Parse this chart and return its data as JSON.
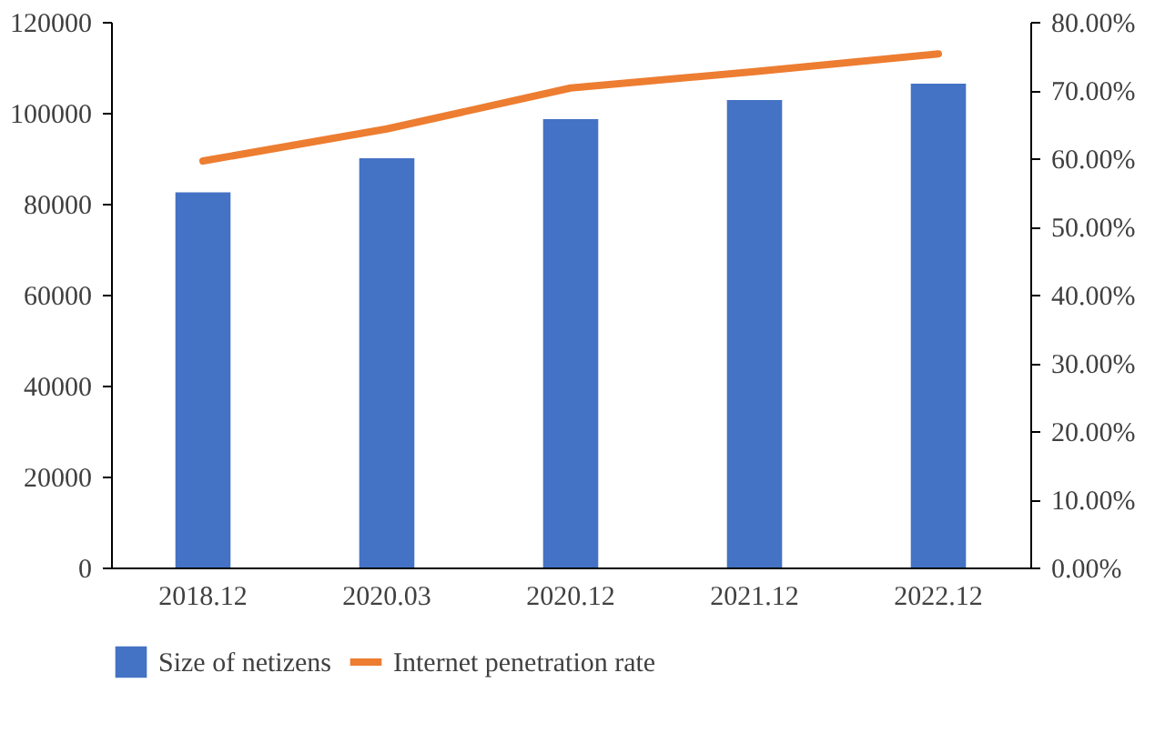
{
  "chart_data": {
    "type": "bar",
    "categories": [
      "2018.12",
      "2020.03",
      "2020.12",
      "2021.12",
      "2022.12"
    ],
    "series": [
      {
        "name": "Size of netizens",
        "color": "#4472c4",
        "values": [
          82500,
          90000,
          98600,
          102800,
          106400
        ]
      },
      {
        "name": "Internet penetration rate",
        "type": "line",
        "axis": "y2",
        "color": "#ed7d31",
        "values": [
          59.6,
          64.3,
          70.3,
          72.7,
          75.3
        ]
      }
    ],
    "ylim": [
      0,
      120000
    ],
    "yticks": [
      0,
      20000,
      40000,
      60000,
      80000,
      100000,
      120000
    ],
    "y2lim": [
      0,
      80
    ],
    "y2ticks": [
      {
        "value": 0,
        "label": "0.00%"
      },
      {
        "value": 10,
        "label": "10.00%"
      },
      {
        "value": 20,
        "label": "20.00%"
      },
      {
        "value": 30,
        "label": "30.00%"
      },
      {
        "value": 40,
        "label": "40.00%"
      },
      {
        "value": 50,
        "label": "50.00%"
      },
      {
        "value": 60,
        "label": "60.00%"
      },
      {
        "value": 70,
        "label": "70.00%"
      },
      {
        "value": 80,
        "label": "80.00%"
      }
    ],
    "grid": false,
    "legend": "bottom",
    "line_style": "solid",
    "marker": "none"
  }
}
